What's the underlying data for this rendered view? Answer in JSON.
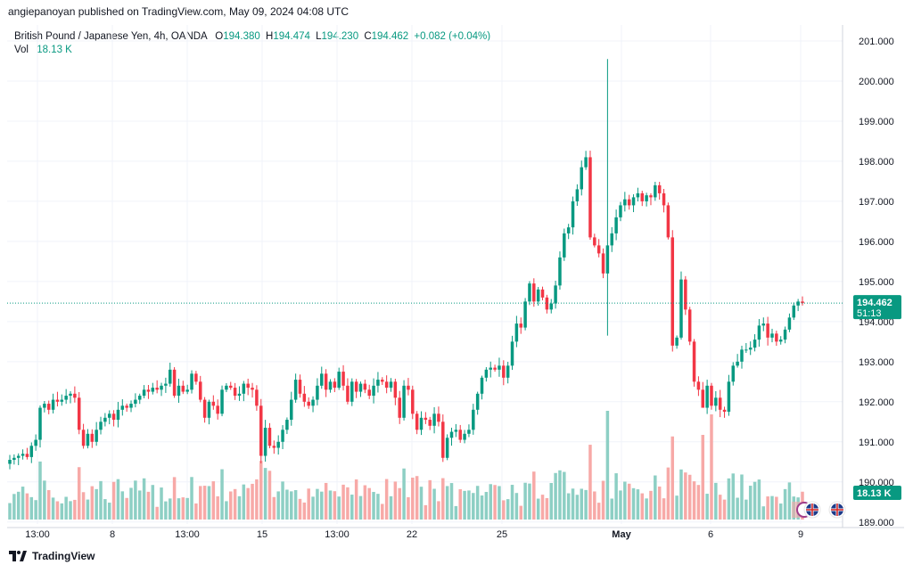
{
  "header": {
    "published": "angiepanoyan published on TradingView.com, May 09, 2024 04:08 UTC"
  },
  "legend": {
    "symbol": "British Pound / Japanese Yen, 4h, OANDA",
    "open_key": "O",
    "open": "194.380",
    "high_key": "H",
    "high": "194.474",
    "low_key": "L",
    "low": "194.230",
    "close_key": "C",
    "close": "194.462",
    "change": "+0.082 (+0.04%)",
    "vol_label": "Vol",
    "vol_value": "18.13 K"
  },
  "price_tag": {
    "price": "194.462",
    "countdown": "51:13"
  },
  "volume_tag": "18.13 K",
  "footer": {
    "brand": "TradingView"
  },
  "colors": {
    "up": "#089981",
    "down": "#f23645",
    "vol_up": "#8dcfc4",
    "vol_down": "#f7a9a7",
    "grid": "#f0f3fa",
    "text": "#131722"
  },
  "icon_names": [
    "tradingview-logo-icon",
    "uk-flag-icon",
    "japan-flag-icon"
  ],
  "chart_data": {
    "type": "candlestick",
    "title": "British Pound / Japanese Yen, 4h, OANDA",
    "y_axis_ticks": [
      "189.000",
      "190.000",
      "191.000",
      "192.000",
      "193.000",
      "194.000",
      "195.000",
      "196.000",
      "197.000",
      "198.000",
      "199.000",
      "200.000",
      "201.000"
    ],
    "x_axis_ticks": [
      "13:00",
      "8",
      "13:00",
      "15",
      "13:00",
      "22",
      "25",
      "May",
      "6",
      "9"
    ],
    "ylim": [
      188.95,
      201.4
    ],
    "grid": true,
    "last_price": 194.462,
    "candles_close": [
      190.55,
      190.6,
      190.65,
      190.7,
      190.62,
      190.9,
      191.05,
      191.85,
      191.95,
      191.8,
      192.05,
      192.0,
      192.05,
      192.15,
      192.2,
      192.1,
      191.3,
      190.9,
      191.2,
      191.0,
      191.3,
      191.5,
      191.6,
      191.7,
      191.55,
      191.8,
      191.9,
      191.85,
      191.95,
      192.05,
      192.15,
      192.3,
      192.25,
      192.35,
      192.3,
      192.4,
      192.45,
      192.8,
      192.15,
      192.4,
      192.25,
      192.3,
      192.7,
      192.5,
      192.05,
      191.6,
      192.0,
      191.9,
      191.7,
      192.3,
      192.4,
      192.35,
      192.15,
      192.2,
      192.45,
      192.35,
      192.3,
      191.9,
      190.65,
      191.35,
      190.9,
      190.85,
      191.0,
      191.3,
      191.55,
      192.05,
      192.55,
      192.2,
      192.0,
      191.9,
      192.05,
      192.4,
      192.7,
      192.3,
      192.5,
      192.35,
      192.75,
      192.4,
      192.0,
      192.5,
      192.25,
      192.45,
      192.3,
      192.15,
      192.4,
      192.55,
      192.5,
      192.35,
      192.5,
      192.1,
      191.6,
      192.4,
      192.3,
      191.7,
      191.3,
      191.6,
      191.55,
      191.4,
      191.7,
      191.5,
      190.6,
      191.1,
      191.25,
      191.3,
      191.05,
      191.2,
      191.3,
      191.8,
      192.2,
      192.6,
      192.8,
      192.85,
      192.8,
      192.9,
      192.6,
      192.9,
      193.5,
      193.95,
      193.85,
      194.5,
      194.95,
      194.5,
      194.8,
      194.6,
      194.3,
      194.45,
      194.9,
      195.6,
      196.2,
      196.35,
      197.0,
      197.3,
      197.85,
      198.1,
      196.1,
      195.9,
      195.7,
      195.2,
      195.9,
      196.2,
      196.6,
      196.9,
      197.05,
      196.9,
      197.1,
      197.2,
      197.0,
      197.15,
      197.1,
      197.4,
      197.2,
      196.9,
      196.1,
      193.4,
      193.6,
      195.05,
      194.3,
      193.5,
      192.5,
      192.3,
      191.85,
      192.4,
      191.9,
      192.1,
      191.8,
      191.75,
      192.5,
      192.9,
      193.0,
      193.3,
      193.3,
      193.35,
      193.55,
      193.9,
      193.95,
      193.6,
      193.7,
      193.5,
      193.55,
      193.8,
      194.1,
      194.4,
      194.5,
      194.462
    ]
  }
}
